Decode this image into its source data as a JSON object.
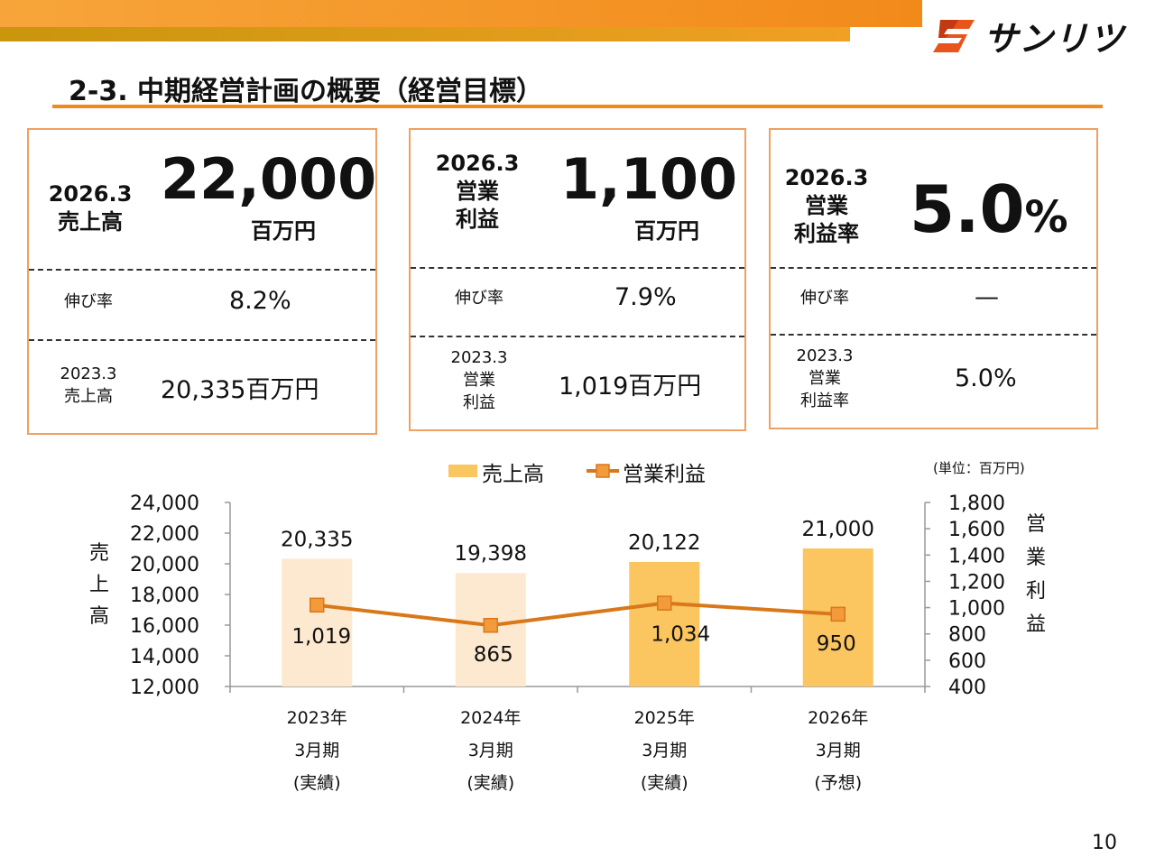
{
  "logo": {
    "text": "サンリツ"
  },
  "title": "2-3. 中期経営計画の概要（経営目標）",
  "cards": [
    {
      "target_label_year": "2026.3",
      "target_label_name": "売上高",
      "target_value": "22,000",
      "target_unit": "百万円",
      "growth_label": "伸び率",
      "growth_value": "8.2%",
      "prev_label_year": "2023.3",
      "prev_label_name": "売上高",
      "prev_value": "20,335百万円"
    },
    {
      "target_label_year": "2026.3",
      "target_label_name1": "営業",
      "target_label_name2": "利益",
      "target_value": "1,100",
      "target_unit": "百万円",
      "growth_label": "伸び率",
      "growth_value": "7.9%",
      "prev_label_year": "2023.3",
      "prev_label_name1": "営業",
      "prev_label_name2": "利益",
      "prev_value": "1,019百万円"
    },
    {
      "target_label_year": "2026.3",
      "target_label_name1": "営業",
      "target_label_name2": "利益率",
      "target_value": "5.0",
      "target_unit": "%",
      "growth_label": "伸び率",
      "growth_value": "—",
      "prev_label_year": "2023.3",
      "prev_label_name1": "営業",
      "prev_label_name2": "利益率",
      "prev_value": "5.0%"
    }
  ],
  "colors": {
    "accent": "#f28a1a",
    "bar_actual_light": "#fde9cf",
    "bar_actual": "#fbc55f",
    "line": "#d9781a",
    "marker": "#f39a3a",
    "card_border": "#f0a060"
  },
  "page_number": "10",
  "chart_data": {
    "type": "bar+line",
    "unit_note": "(単位：百万円)",
    "legend": [
      "売上高",
      "営業利益"
    ],
    "y_left_label": [
      "売",
      "上",
      "高"
    ],
    "y_right_label": [
      "営",
      "業",
      "利",
      "益"
    ],
    "y_left_range": [
      12000,
      24000
    ],
    "y_left_ticks": [
      "24,000",
      "22,000",
      "20,000",
      "18,000",
      "16,000",
      "14,000",
      "12,000"
    ],
    "y_left_tick_values": [
      24000,
      22000,
      20000,
      18000,
      16000,
      14000,
      12000
    ],
    "y_right_range": [
      400,
      1800
    ],
    "y_right_ticks": [
      "1,800",
      "1,600",
      "1,400",
      "1,200",
      "1,000",
      "800",
      "600",
      "400"
    ],
    "y_right_tick_values": [
      1800,
      1600,
      1400,
      1200,
      1000,
      800,
      600,
      400
    ],
    "categories": [
      [
        "2023年",
        "3月期",
        "(実績)"
      ],
      [
        "2024年",
        "3月期",
        "(実績)"
      ],
      [
        "2025年",
        "3月期",
        "(実績)"
      ],
      [
        "2026年",
        "3月期",
        "(予想)"
      ]
    ],
    "series": [
      {
        "name": "売上高",
        "kind": "bar",
        "values": [
          20335,
          19398,
          20122,
          21000
        ],
        "labels": [
          "20,335",
          "19,398",
          "20,122",
          "21,000"
        ]
      },
      {
        "name": "営業利益",
        "kind": "line",
        "values": [
          1019,
          865,
          1034,
          950
        ],
        "labels": [
          "1,019",
          "865",
          "1,034",
          "950"
        ]
      }
    ]
  }
}
